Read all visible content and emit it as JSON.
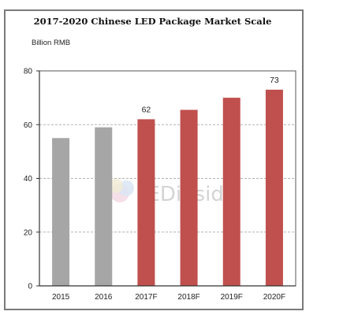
{
  "chart_data": {
    "type": "bar",
    "title": "2017-2020 Chinese LED Package Market Scale",
    "ylabel": "Billion RMB",
    "xlabel": "",
    "categories": [
      "2015",
      "2016",
      "2017F",
      "2018F",
      "2019F",
      "2020F"
    ],
    "values": [
      55,
      59,
      62,
      65.5,
      70,
      73
    ],
    "bar_colors": [
      "#a6a6a6",
      "#a6a6a6",
      "#c0504d",
      "#c0504d",
      "#c0504d",
      "#c0504d"
    ],
    "data_labels": [
      "",
      "",
      "62",
      "",
      "",
      "73"
    ],
    "ylim": [
      0,
      80
    ],
    "yticks": [
      "0",
      "20",
      "40",
      "60",
      "80"
    ],
    "grid": true,
    "grid_style": "dashed",
    "legend": "none"
  },
  "watermark": {
    "text": "LEDinside"
  }
}
